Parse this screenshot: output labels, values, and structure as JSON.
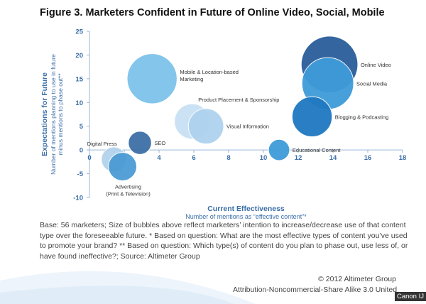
{
  "figure_title": "Figure 3. Marketers Confident in Future of Online Video, Social, Mobile",
  "base_note": "Base: 56 marketers; Size of bubbles above reflect marketers’ intention to increase/decrease use of that content type over the foreseeable future. * Based on question: What are the most effective types of content you’ve used to promote your brand? ** Based on question: Which type(s) of content do you plan to phase out, use less of, or have found ineffective?; Source: Altimeter Group",
  "copyright": "© 2012 Altimeter Group",
  "license": "Attribution-Noncommercial-Share Alike 3.0 United",
  "camera_label": "Canon IJ",
  "colors": {
    "axis_label": "#3a6ea8",
    "tick": "#3a6ea8",
    "gridline": "#9ab6d6"
  },
  "chart_data": {
    "type": "scatter",
    "subtype": "bubble",
    "title": "Figure 3. Marketers Confident in Future of Online Video, Social, Mobile",
    "xlabel": "Current Effectiveness",
    "xlabel_sub": "Number of mentions as “effective content”*",
    "ylabel": "Expectations for Future",
    "ylabel_sub": [
      "Number of mentions planning to use in future",
      "minus mentions to phase out**"
    ],
    "xlim": [
      0,
      18
    ],
    "ylim": [
      -10,
      25
    ],
    "xticks": [
      0,
      2,
      4,
      6,
      8,
      10,
      12,
      14,
      16,
      18
    ],
    "xtick_labels": [
      "0",
      "2",
      "4",
      "6",
      "8",
      "10",
      "12",
      "14",
      "16",
      "18"
    ],
    "yticks": [
      -10,
      -5,
      0,
      5,
      10,
      15,
      20,
      25
    ],
    "ytick_labels": [
      "-10",
      "-5",
      "0",
      "5",
      "10",
      "15",
      "20",
      "25"
    ],
    "grid": false,
    "series": [
      {
        "name": "Online Video",
        "x": 13.8,
        "y": 18,
        "size": 18,
        "color": "#2a5d9a",
        "labels": [
          "Online Video"
        ]
      },
      {
        "name": "Social Media",
        "x": 13.7,
        "y": 14,
        "size": 15,
        "color": "#3f9bd9",
        "labels": [
          "Social Media"
        ]
      },
      {
        "name": "Blogging & Podcasting",
        "x": 12.8,
        "y": 7,
        "size": 9,
        "color": "#1f78c1",
        "labels": [
          "Blogging & Podcasting"
        ]
      },
      {
        "name": "Mobile & Location-based Marketing",
        "x": 3.6,
        "y": 15,
        "size": 14,
        "color": "#7ec2ea",
        "labels": [
          "Mobile & Location-based",
          "Marketing"
        ]
      },
      {
        "name": "Product Placement & Sponsorship",
        "x": 5.9,
        "y": 6,
        "size": 7,
        "color": "#c8e1f4",
        "labels": [
          "Product Placement & Sponsorship"
        ]
      },
      {
        "name": "Visual Information",
        "x": 6.7,
        "y": 5,
        "size": 7,
        "color": "#aed2ee",
        "labels": [
          "Visual Information"
        ]
      },
      {
        "name": "Educational Content",
        "x": 10.9,
        "y": 0,
        "size": 2.5,
        "color": "#3f9bd9",
        "labels": [
          "Educational Content"
        ]
      },
      {
        "name": "SEO",
        "x": 2.9,
        "y": 1.5,
        "size": 3,
        "color": "#3d6fa6",
        "labels": [
          "SEO"
        ]
      },
      {
        "name": "Digital Press",
        "x": 1.4,
        "y": -2,
        "size": 3.5,
        "color": "#b3d3ec",
        "labels": [
          "Digital Press"
        ]
      },
      {
        "name": "Advertising (Print & Television)",
        "x": 1.9,
        "y": -3.5,
        "size": 4.5,
        "color": "#4b9bd5",
        "labels": [
          "Advertising",
          "(Print & Television)"
        ]
      }
    ]
  }
}
